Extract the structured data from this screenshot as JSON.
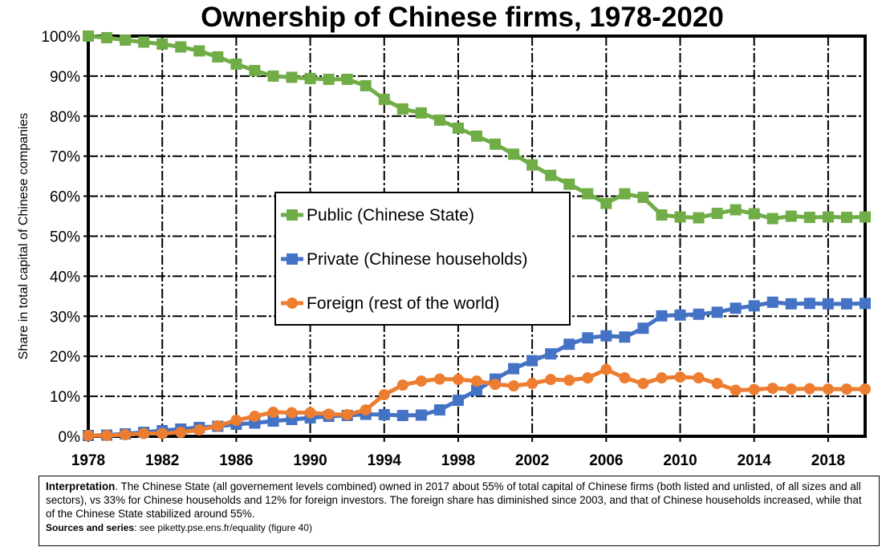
{
  "chart_data": {
    "type": "line",
    "title": "Ownership of Chinese firms, 1978-2020",
    "ylabel": "Share in total capital of Chinese companies",
    "xlabel": "",
    "ylim": [
      0,
      100
    ],
    "xlim": [
      1978,
      2020
    ],
    "grid": true,
    "legend_position": "center",
    "x_ticks": [
      "1978",
      "1982",
      "1986",
      "1990",
      "1994",
      "1998",
      "2002",
      "2006",
      "2010",
      "2014",
      "2018"
    ],
    "y_ticks": [
      "0%",
      "10%",
      "20%",
      "30%",
      "40%",
      "50%",
      "60%",
      "70%",
      "80%",
      "90%",
      "100%"
    ],
    "x": [
      1978,
      1979,
      1980,
      1981,
      1982,
      1983,
      1984,
      1985,
      1986,
      1987,
      1988,
      1989,
      1990,
      1991,
      1992,
      1993,
      1994,
      1995,
      1996,
      1997,
      1998,
      1999,
      2000,
      2001,
      2002,
      2003,
      2004,
      2005,
      2006,
      2007,
      2008,
      2009,
      2010,
      2011,
      2012,
      2013,
      2014,
      2015,
      2016,
      2017,
      2018,
      2019,
      2020
    ],
    "series": [
      {
        "name": "Public (Chinese State)",
        "color": "#70ad47",
        "marker": "square",
        "values": [
          100,
          99.6,
          99,
          98.5,
          98,
          97.3,
          96.3,
          94.8,
          93,
          91.4,
          90,
          89.7,
          89.4,
          89.2,
          89.2,
          87.6,
          84.2,
          81.8,
          80.8,
          79,
          77,
          75,
          73,
          70.5,
          67.8,
          65.2,
          63,
          60.6,
          58.2,
          60.6,
          59.7,
          55.3,
          54.8,
          54.6,
          55.7,
          56.6,
          55.6,
          54.4,
          55,
          54.7,
          54.8,
          54.7,
          54.8
        ]
      },
      {
        "name": "Private (Chinese households)",
        "color": "#4472c4",
        "marker": "square",
        "values": [
          0.2,
          0.3,
          0.6,
          1.0,
          1.4,
          1.8,
          2.2,
          2.5,
          3.0,
          3.3,
          3.8,
          4.2,
          4.6,
          5.0,
          5.2,
          5.5,
          5.4,
          5.2,
          5.3,
          6.6,
          9,
          11.5,
          14.3,
          16.9,
          18.9,
          20.6,
          23,
          24.6,
          25.1,
          24.8,
          27,
          30.1,
          30.3,
          30.5,
          31,
          32,
          32.6,
          33.5,
          33.1,
          33.2,
          33.1,
          33.1,
          33.2
        ]
      },
      {
        "name": "Foreign (rest of the world)",
        "color": "#ed7d31",
        "marker": "circle",
        "values": [
          0.2,
          0.2,
          0.4,
          0.7,
          0.7,
          1.0,
          1.6,
          2.6,
          4,
          5,
          6,
          5.9,
          5.9,
          5.5,
          5.4,
          6.6,
          10.4,
          12.8,
          13.8,
          14.3,
          14.2,
          13.8,
          13,
          12.6,
          13.2,
          14.2,
          14,
          14.6,
          16.7,
          14.6,
          13.2,
          14.6,
          14.8,
          14.6,
          13.2,
          11.5,
          11.7,
          12,
          11.8,
          11.9,
          11.8,
          11.8,
          11.8
        ]
      }
    ]
  },
  "note": {
    "interpretation_label": "Interpretation",
    "interpretation_text": ". The Chinese State (all governement levels combined) owned in 2017 about 55% of total capital of Chinese firms (both listed and unlisted, of all sizes and all sectors), vs 33% for Chinese households and 12% for foreign investors. The foreign share has diminished since 2003, and that of Chinese households increased, while that of the Chinese State stabilized around 55%.",
    "sources_label": "Sources and series",
    "sources_text": ": see piketty.pse.ens.fr/equality (figure 40)"
  }
}
